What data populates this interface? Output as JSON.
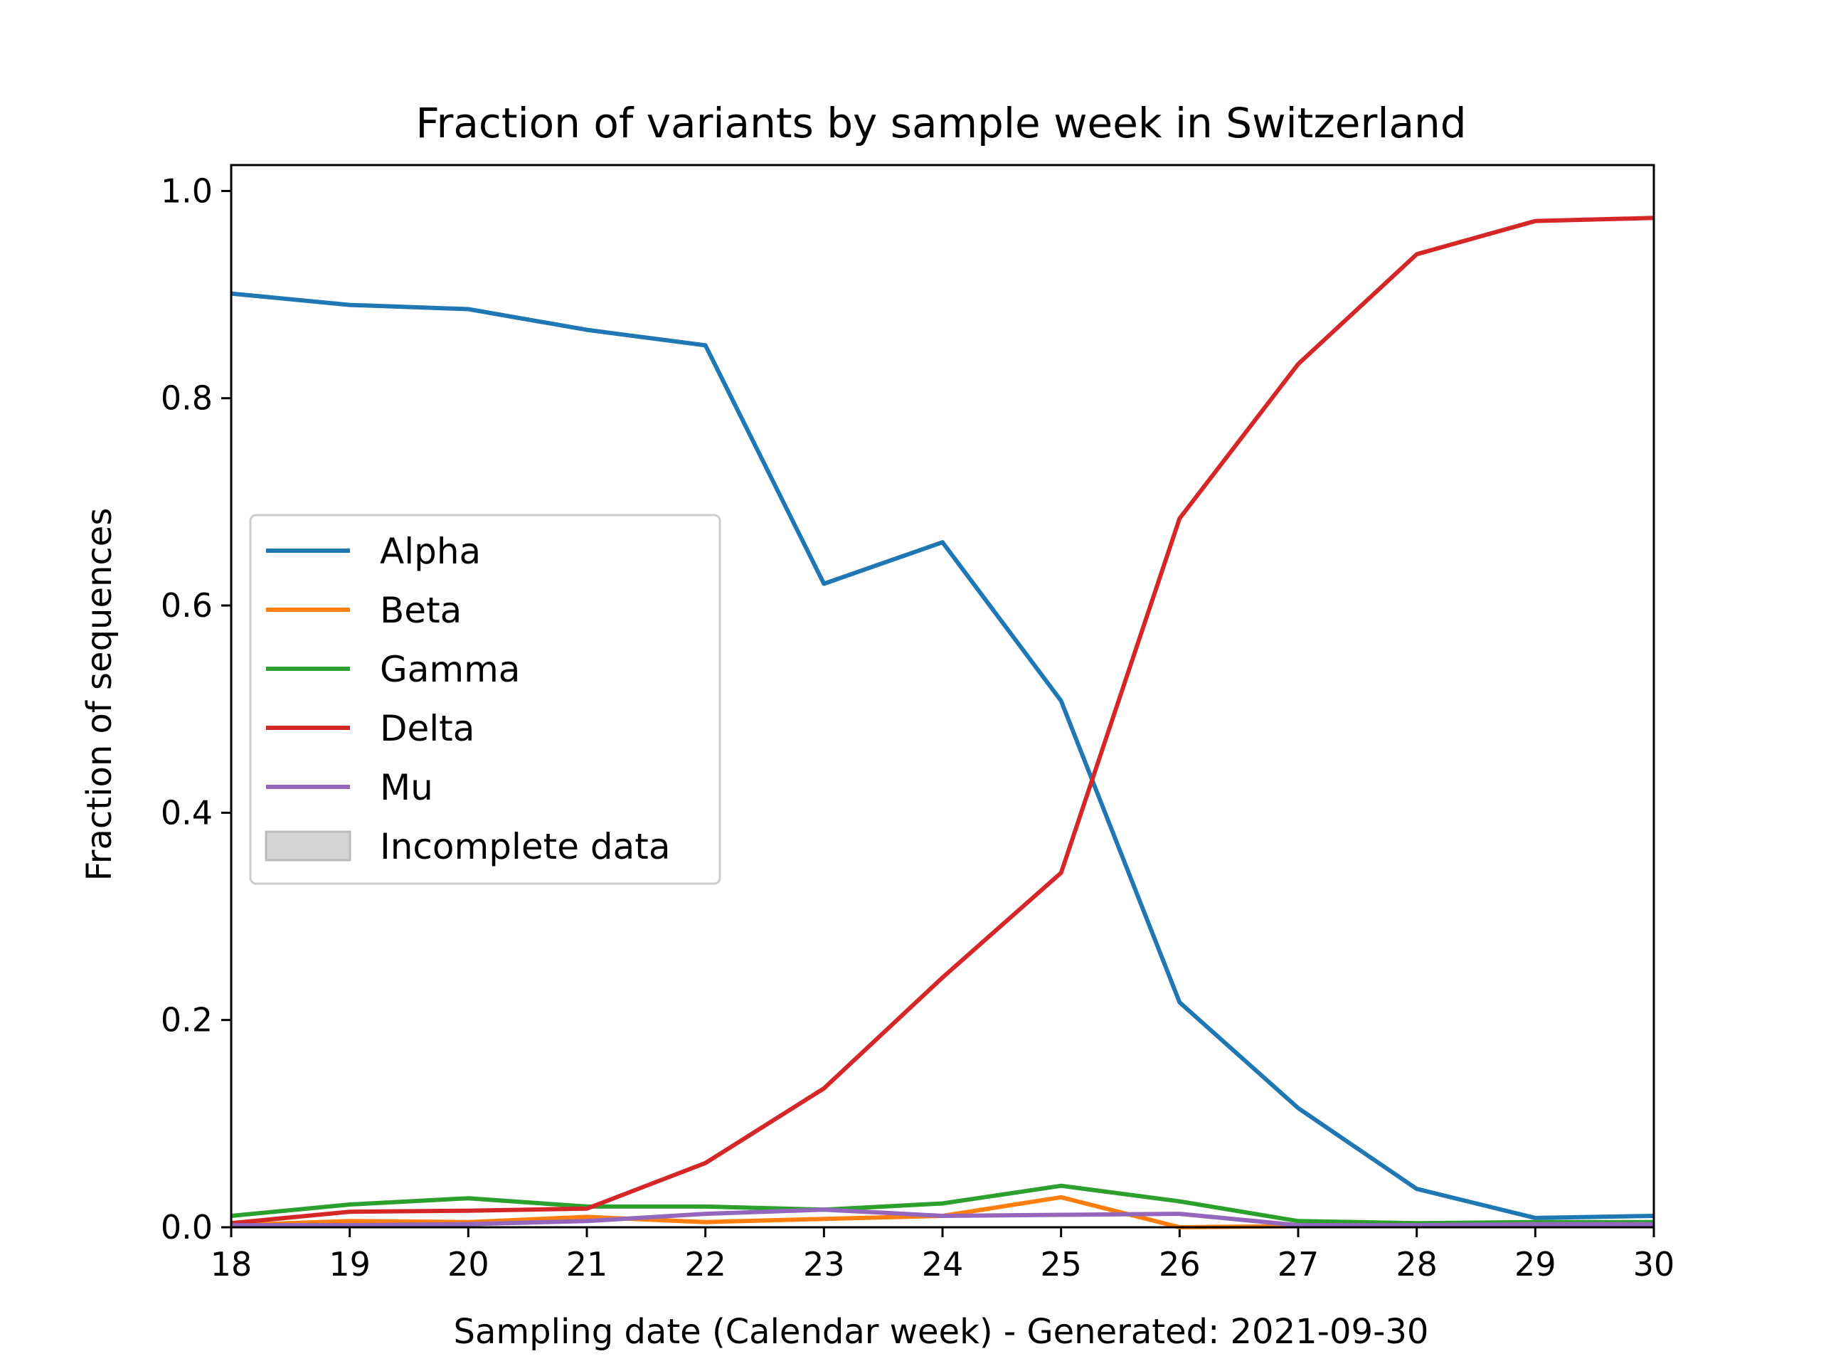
{
  "chart_data": {
    "type": "line",
    "title": "Fraction of variants by sample week in Switzerland",
    "xlabel": "Sampling date (Calendar week) - Generated: 2021-09-30",
    "ylabel": "Fraction of sequences",
    "xlim": [
      18,
      30
    ],
    "ylim": [
      0,
      1.025
    ],
    "x_ticks": [
      18,
      19,
      20,
      21,
      22,
      23,
      24,
      25,
      26,
      27,
      28,
      29,
      30
    ],
    "y_ticks": [
      0.0,
      0.2,
      0.4,
      0.6,
      0.8,
      1.0
    ],
    "y_tick_labels": [
      "0.0",
      "0.2",
      "0.4",
      "0.6",
      "0.8",
      "1.0"
    ],
    "grid": false,
    "legend_position": "center-left",
    "x": [
      18,
      19,
      20,
      21,
      22,
      23,
      24,
      25,
      26,
      27,
      28,
      29,
      30
    ],
    "series": [
      {
        "name": "Alpha",
        "color": "#1f77b4",
        "values": [
          0.901,
          0.89,
          0.886,
          0.866,
          0.851,
          0.621,
          0.661,
          0.508,
          0.217,
          0.115,
          0.037,
          0.009,
          0.011
        ]
      },
      {
        "name": "Beta",
        "color": "#ff7f0e",
        "values": [
          0.002,
          0.006,
          0.005,
          0.01,
          0.005,
          0.008,
          0.011,
          0.029,
          0.0,
          0.001,
          0.001,
          0.001,
          0.001
        ]
      },
      {
        "name": "Gamma",
        "color": "#2ca02c",
        "values": [
          0.011,
          0.022,
          0.028,
          0.02,
          0.02,
          0.017,
          0.023,
          0.04,
          0.025,
          0.006,
          0.004,
          0.005,
          0.005
        ]
      },
      {
        "name": "Delta",
        "color": "#d62728",
        "values": [
          0.004,
          0.015,
          0.016,
          0.018,
          0.062,
          0.134,
          0.241,
          0.342,
          0.684,
          0.833,
          0.939,
          0.971,
          0.974
        ]
      },
      {
        "name": "Mu",
        "color": "#9467bd",
        "values": [
          0.002,
          0.002,
          0.003,
          0.006,
          0.013,
          0.017,
          0.011,
          0.012,
          0.013,
          0.002,
          0.002,
          0.003,
          0.003
        ]
      }
    ],
    "legend_extra": {
      "label": "Incomplete data",
      "color": "#d3d3d3"
    }
  }
}
